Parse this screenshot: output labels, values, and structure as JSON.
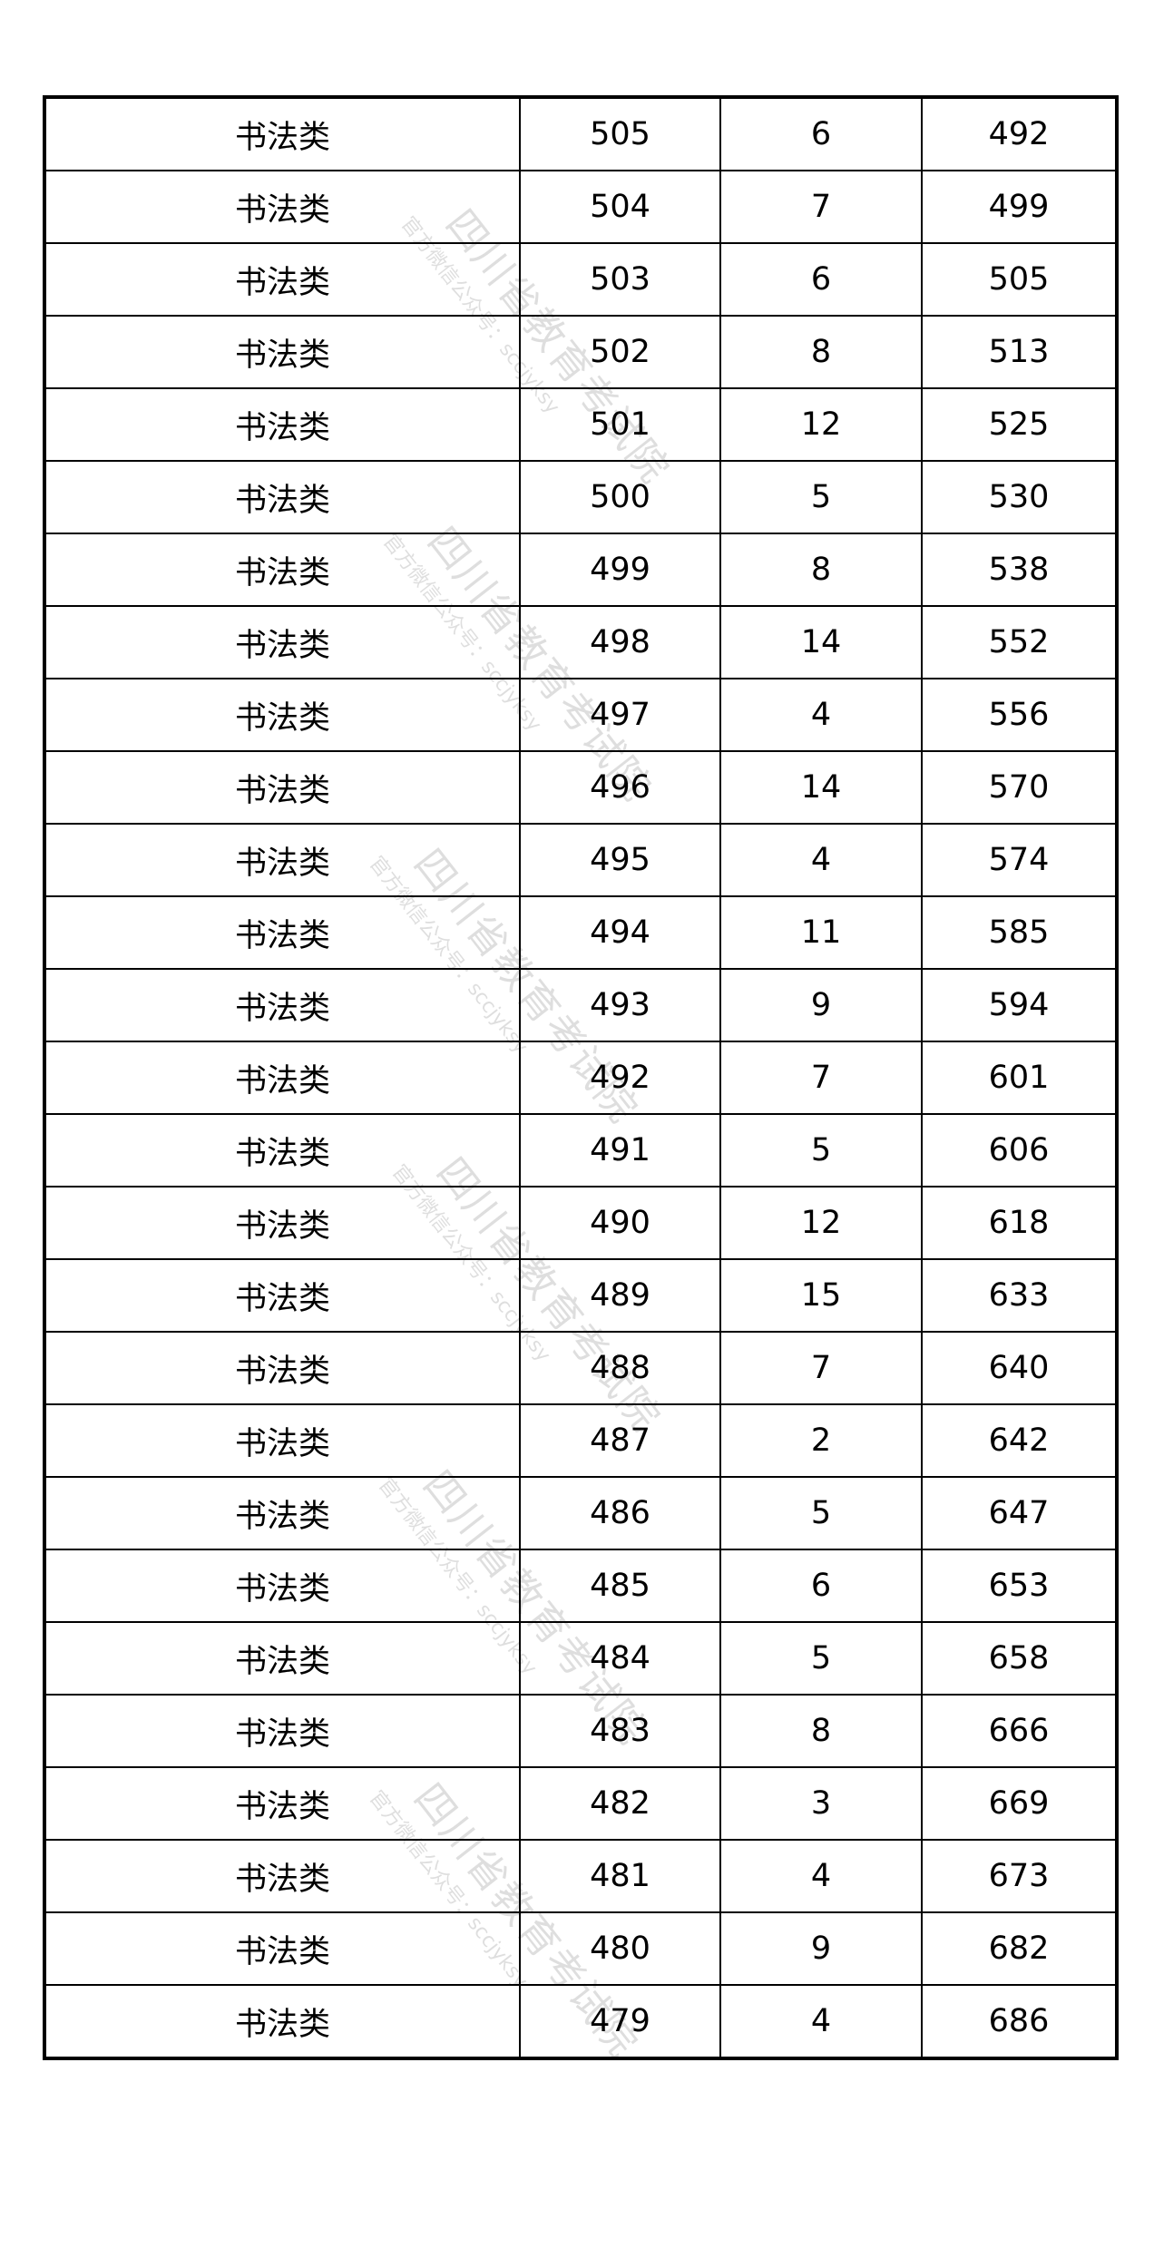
{
  "table": {
    "rows": [
      [
        "书法类",
        "505",
        "6",
        "492"
      ],
      [
        "书法类",
        "504",
        "7",
        "499"
      ],
      [
        "书法类",
        "503",
        "6",
        "505"
      ],
      [
        "书法类",
        "502",
        "8",
        "513"
      ],
      [
        "书法类",
        "501",
        "12",
        "525"
      ],
      [
        "书法类",
        "500",
        "5",
        "530"
      ],
      [
        "书法类",
        "499",
        "8",
        "538"
      ],
      [
        "书法类",
        "498",
        "14",
        "552"
      ],
      [
        "书法类",
        "497",
        "4",
        "556"
      ],
      [
        "书法类",
        "496",
        "14",
        "570"
      ],
      [
        "书法类",
        "495",
        "4",
        "574"
      ],
      [
        "书法类",
        "494",
        "11",
        "585"
      ],
      [
        "书法类",
        "493",
        "9",
        "594"
      ],
      [
        "书法类",
        "492",
        "7",
        "601"
      ],
      [
        "书法类",
        "491",
        "5",
        "606"
      ],
      [
        "书法类",
        "490",
        "12",
        "618"
      ],
      [
        "书法类",
        "489",
        "15",
        "633"
      ],
      [
        "书法类",
        "488",
        "7",
        "640"
      ],
      [
        "书法类",
        "487",
        "2",
        "642"
      ],
      [
        "书法类",
        "486",
        "5",
        "647"
      ],
      [
        "书法类",
        "485",
        "6",
        "653"
      ],
      [
        "书法类",
        "484",
        "5",
        "658"
      ],
      [
        "书法类",
        "483",
        "8",
        "666"
      ],
      [
        "书法类",
        "482",
        "3",
        "669"
      ],
      [
        "书法类",
        "481",
        "4",
        "673"
      ],
      [
        "书法类",
        "480",
        "9",
        "682"
      ],
      [
        "书法类",
        "479",
        "4",
        "686"
      ]
    ]
  },
  "watermark": {
    "title": "四川省教育考试院",
    "subtitle": "官方微信公众号：sccjyksy"
  }
}
